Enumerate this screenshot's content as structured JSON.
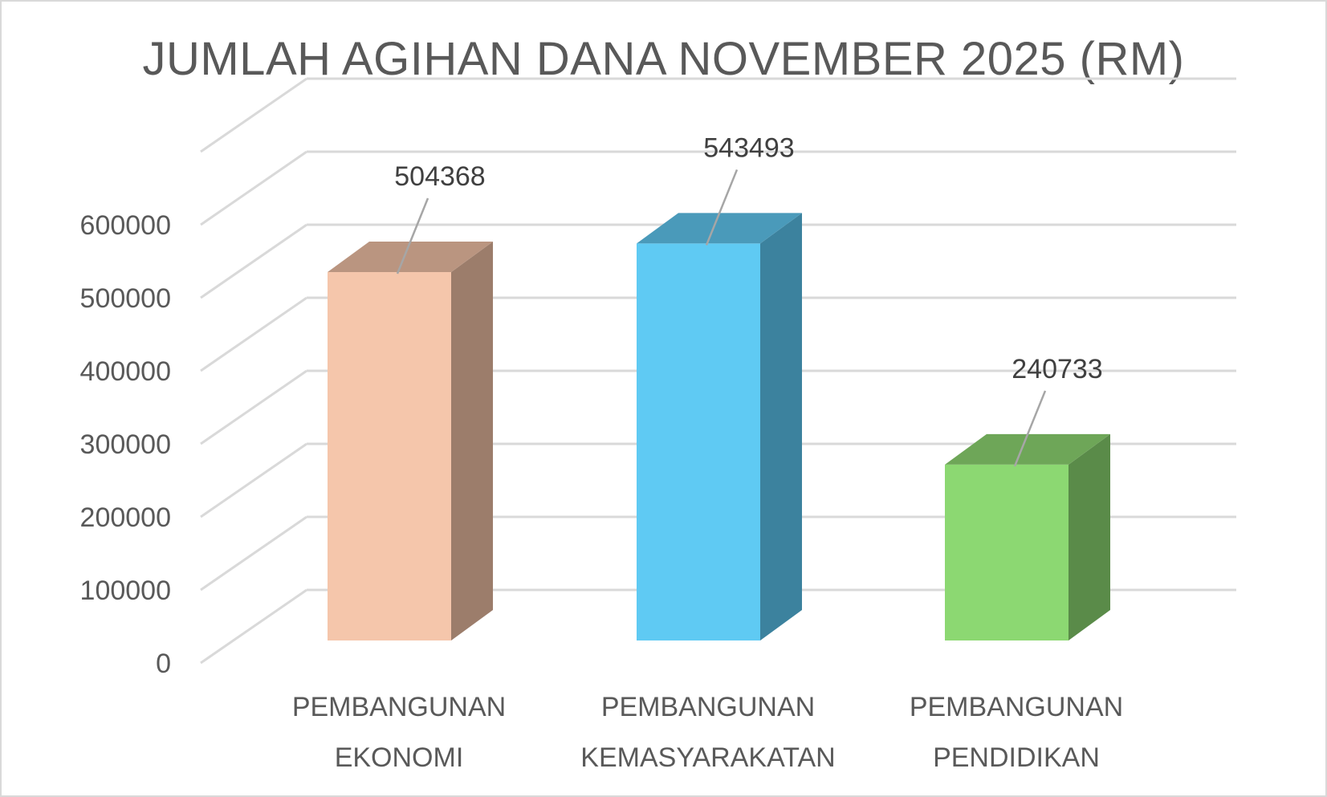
{
  "chart_data": {
    "type": "bar",
    "title": "JUMLAH AGIHAN DANA NOVEMBER 2025 (RM)",
    "categories": [
      [
        "PEMBANGUNAN",
        "EKONOMI"
      ],
      [
        "PEMBANGUNAN",
        "KEMASYARAKATAN"
      ],
      [
        "PEMBANGUNAN",
        "PENDIDIKAN"
      ]
    ],
    "values": [
      504368,
      543493,
      240733
    ],
    "data_labels": [
      "504368",
      "543493",
      "240733"
    ],
    "yticks": [
      "0",
      "100000",
      "200000",
      "300000",
      "400000",
      "500000",
      "600000"
    ],
    "ylim": [
      0,
      700000
    ],
    "grid": true,
    "style": "3d-column",
    "colors": {
      "front": [
        "#f5c6ab",
        "#5fcaf3",
        "#8cd872"
      ],
      "side": [
        "#9c7d6b",
        "#3c829e",
        "#5a8b49"
      ],
      "top": [
        "#ba9580",
        "#4a9aba",
        "#6ea658"
      ],
      "grid": "#d9d9d9",
      "text": "#595959"
    }
  }
}
